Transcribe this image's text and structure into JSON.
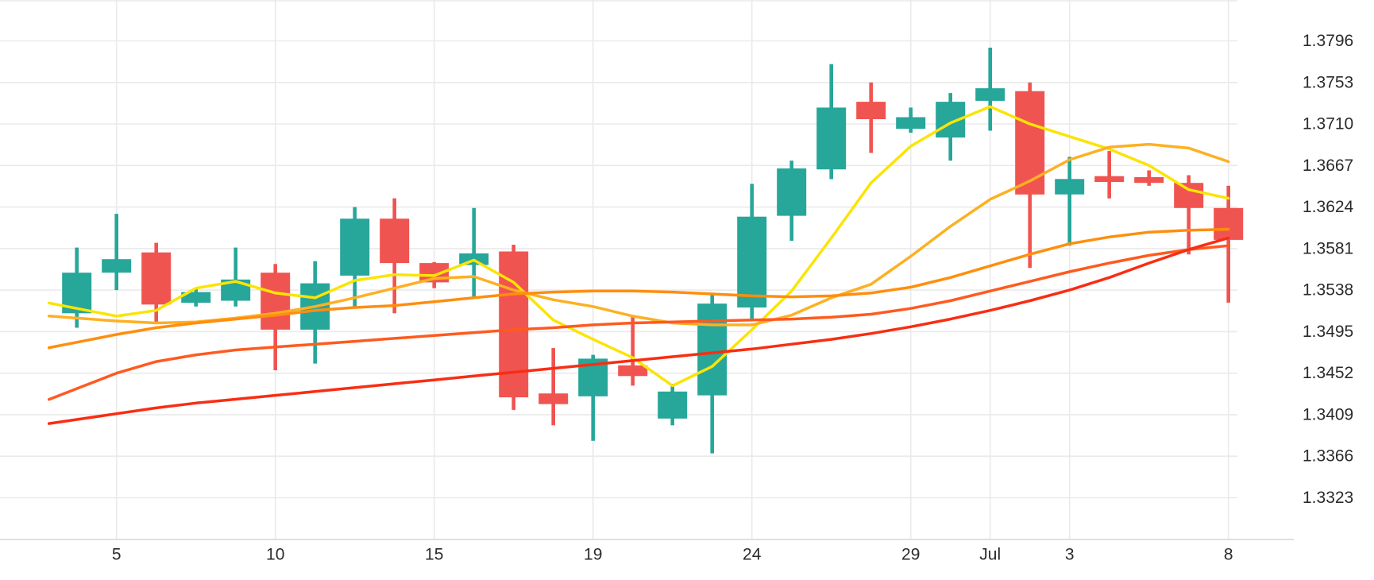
{
  "page": {
    "background": "#ffffff"
  },
  "chart": {
    "grid_color": "#eaeaea",
    "axis_line_color": "#e0e0e0",
    "label_color": "#2b2b2b",
    "up_color": "#27a69a",
    "down_color": "#f05450",
    "y_axis_labels": [
      "1.3796",
      "1.3753",
      "1.3710",
      "1.3667",
      "1.3624",
      "1.3581",
      "1.3538",
      "1.3495",
      "1.3452",
      "1.3409",
      "1.3366",
      "1.3323"
    ],
    "x_ticks": [
      {
        "i": 1,
        "label": "5"
      },
      {
        "i": 5,
        "label": "10"
      },
      {
        "i": 9,
        "label": "15"
      },
      {
        "i": 13,
        "label": "19"
      },
      {
        "i": 17,
        "label": "24"
      },
      {
        "i": 21,
        "label": "29"
      },
      {
        "i": 23,
        "label": "Jul"
      },
      {
        "i": 25,
        "label": "3"
      },
      {
        "i": 29,
        "label": "8"
      }
    ]
  },
  "chart_data": {
    "type": "candlestick",
    "title": "",
    "xlabel": "",
    "ylabel": "",
    "ylim": [
      1.328,
      1.3838
    ],
    "grid": true,
    "legend_position": "none",
    "x_tick_labels": [
      "5",
      "10",
      "15",
      "19",
      "24",
      "29",
      "Jul",
      "3",
      "8"
    ],
    "candles": [
      {
        "o": 1.3514,
        "h": 1.3582,
        "l": 1.3499,
        "c": 1.3556
      },
      {
        "o": 1.3556,
        "h": 1.3617,
        "l": 1.3538,
        "c": 1.357
      },
      {
        "o": 1.3577,
        "h": 1.3587,
        "l": 1.3504,
        "c": 1.3523
      },
      {
        "o": 1.3525,
        "h": 1.3539,
        "l": 1.3521,
        "c": 1.3536
      },
      {
        "o": 1.3527,
        "h": 1.3582,
        "l": 1.3521,
        "c": 1.3549
      },
      {
        "o": 1.3556,
        "h": 1.3565,
        "l": 1.3455,
        "c": 1.3497
      },
      {
        "o": 1.3497,
        "h": 1.3568,
        "l": 1.3462,
        "c": 1.3545
      },
      {
        "o": 1.3553,
        "h": 1.3624,
        "l": 1.3521,
        "c": 1.3612
      },
      {
        "o": 1.3612,
        "h": 1.3633,
        "l": 1.3514,
        "c": 1.3566
      },
      {
        "o": 1.3566,
        "h": 1.3567,
        "l": 1.354,
        "c": 1.3546
      },
      {
        "o": 1.3564,
        "h": 1.3623,
        "l": 1.353,
        "c": 1.3576
      },
      {
        "o": 1.3578,
        "h": 1.3585,
        "l": 1.3414,
        "c": 1.3427
      },
      {
        "o": 1.3431,
        "h": 1.3478,
        "l": 1.3398,
        "c": 1.342
      },
      {
        "o": 1.3428,
        "h": 1.3471,
        "l": 1.3382,
        "c": 1.3467
      },
      {
        "o": 1.346,
        "h": 1.3512,
        "l": 1.3439,
        "c": 1.3449
      },
      {
        "o": 1.3405,
        "h": 1.3441,
        "l": 1.3398,
        "c": 1.3433
      },
      {
        "o": 1.3429,
        "h": 1.3533,
        "l": 1.3369,
        "c": 1.3524
      },
      {
        "o": 1.352,
        "h": 1.3648,
        "l": 1.3506,
        "c": 1.3614
      },
      {
        "o": 1.3615,
        "h": 1.3672,
        "l": 1.3589,
        "c": 1.3664
      },
      {
        "o": 1.3663,
        "h": 1.3772,
        "l": 1.3653,
        "c": 1.3727
      },
      {
        "o": 1.3733,
        "h": 1.3753,
        "l": 1.368,
        "c": 1.3715
      },
      {
        "o": 1.3705,
        "h": 1.3727,
        "l": 1.3701,
        "c": 1.3717
      },
      {
        "o": 1.3696,
        "h": 1.3742,
        "l": 1.3672,
        "c": 1.3733
      },
      {
        "o": 1.3734,
        "h": 1.3789,
        "l": 1.3703,
        "c": 1.3747
      },
      {
        "o": 1.3744,
        "h": 1.3753,
        "l": 1.3561,
        "c": 1.3637
      },
      {
        "o": 1.3637,
        "h": 1.3676,
        "l": 1.3584,
        "c": 1.3653
      },
      {
        "o": 1.3656,
        "h": 1.3682,
        "l": 1.3633,
        "c": 1.365
      },
      {
        "o": 1.3655,
        "h": 1.3662,
        "l": 1.3646,
        "c": 1.3649
      },
      {
        "o": 1.3649,
        "h": 1.3657,
        "l": 1.3575,
        "c": 1.3623
      },
      {
        "o": 1.3623,
        "h": 1.3646,
        "l": 1.3525,
        "c": 1.359
      }
    ],
    "overlays": [
      {
        "name": "sma-5",
        "color": "#fbe405",
        "values": [
          1.3519,
          1.3511,
          1.3517,
          1.354,
          1.3547,
          1.3535,
          1.353,
          1.3548,
          1.3554,
          1.3553,
          1.3569,
          1.3546,
          1.3507,
          1.3487,
          1.3468,
          1.3439,
          1.3459,
          1.3497,
          1.3537,
          1.3592,
          1.3649,
          1.3687,
          1.3711,
          1.3728,
          1.371,
          1.3697,
          1.3684,
          1.3667,
          1.3642,
          1.3633
        ]
      },
      {
        "name": "sma-10",
        "color": "#fdb022",
        "values": [
          1.3509,
          1.3506,
          1.3504,
          1.3505,
          1.3509,
          1.3514,
          1.3521,
          1.353,
          1.354,
          1.355,
          1.3552,
          1.3538,
          1.3528,
          1.3521,
          1.3511,
          1.3504,
          1.3502,
          1.3502,
          1.3512,
          1.353,
          1.3544,
          1.3573,
          1.3604,
          1.3632,
          1.3651,
          1.3673,
          1.3686,
          1.3689,
          1.3685,
          1.3671
        ]
      },
      {
        "name": "sma-20",
        "color": "#ff8e0d",
        "values": [
          1.3484,
          1.3492,
          1.3499,
          1.3504,
          1.3508,
          1.3512,
          1.3517,
          1.352,
          1.3522,
          1.3526,
          1.353,
          1.3534,
          1.3536,
          1.3537,
          1.3537,
          1.3536,
          1.3534,
          1.3532,
          1.3531,
          1.3532,
          1.3535,
          1.3541,
          1.3551,
          1.3563,
          1.3575,
          1.3586,
          1.3593,
          1.3598,
          1.36,
          1.3601
        ]
      },
      {
        "name": "sma-30",
        "color": "#ff5a1f",
        "values": [
          1.3436,
          1.3452,
          1.3464,
          1.3471,
          1.3476,
          1.3479,
          1.3482,
          1.3485,
          1.3488,
          1.3491,
          1.3494,
          1.3497,
          1.3499,
          1.3502,
          1.3504,
          1.3505,
          1.3506,
          1.3507,
          1.3508,
          1.351,
          1.3513,
          1.3519,
          1.3527,
          1.3537,
          1.3547,
          1.3557,
          1.3566,
          1.3574,
          1.358,
          1.3584
        ]
      },
      {
        "name": "sma-slow",
        "color": "#f92d12",
        "values": [
          1.3404,
          1.341,
          1.3416,
          1.3421,
          1.3425,
          1.3429,
          1.3433,
          1.3437,
          1.3441,
          1.3445,
          1.3449,
          1.3453,
          1.3457,
          1.3461,
          1.3465,
          1.3469,
          1.3473,
          1.3477,
          1.3482,
          1.3487,
          1.3493,
          1.35,
          1.3508,
          1.3517,
          1.3527,
          1.3538,
          1.3551,
          1.3566,
          1.358,
          1.3592
        ]
      }
    ]
  }
}
